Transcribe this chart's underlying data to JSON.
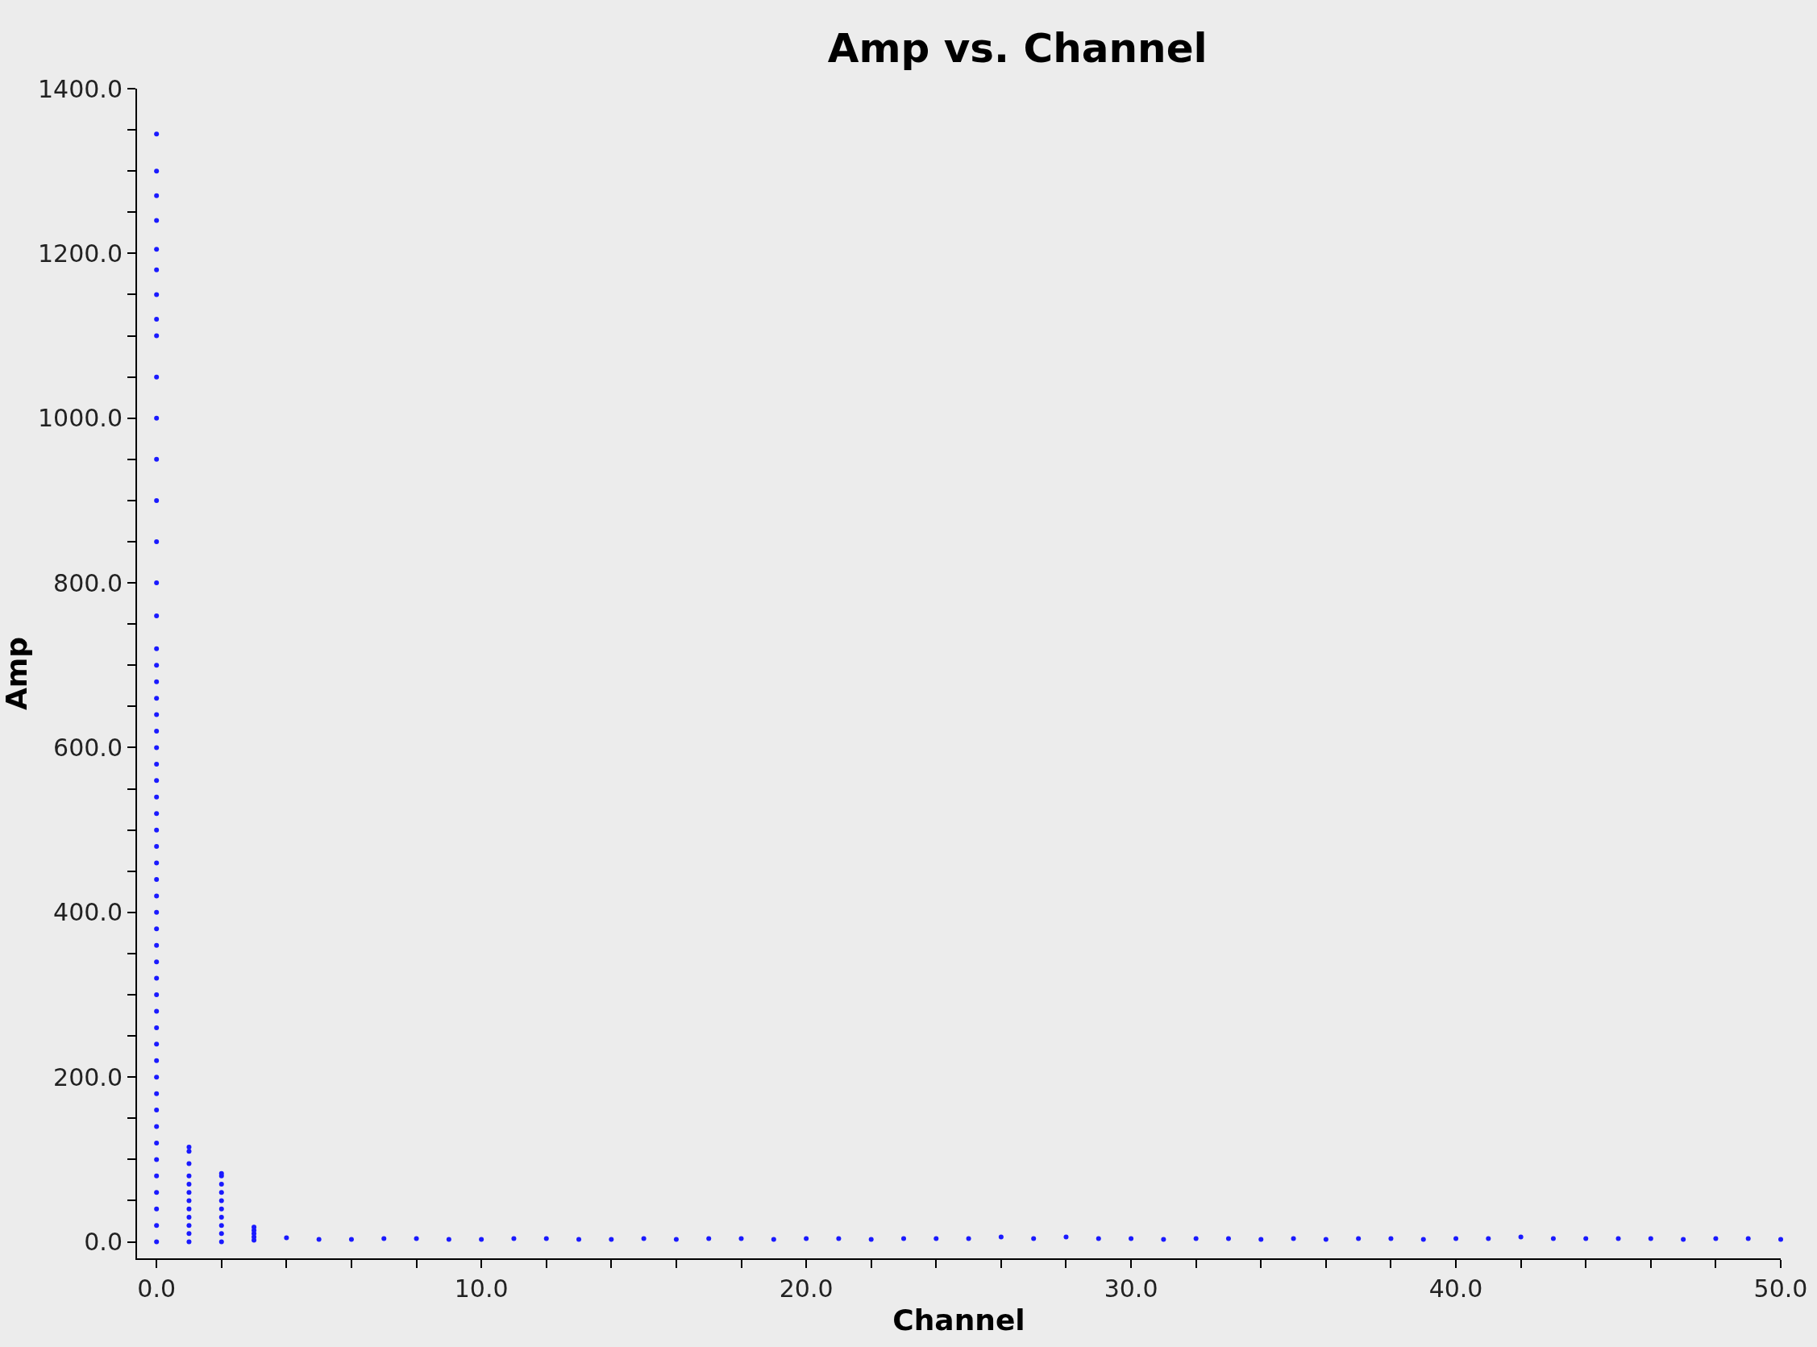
{
  "chart_data": {
    "type": "scatter",
    "title": "Amp vs. Channel",
    "xlabel": "Channel",
    "ylabel": "Amp",
    "x": [
      0,
      0,
      0,
      0,
      0,
      0,
      0,
      0,
      0,
      0,
      0,
      0,
      0,
      0,
      0,
      0,
      0,
      0,
      0,
      0,
      0,
      0,
      0,
      0,
      0,
      0,
      0,
      0,
      0,
      0,
      0,
      0,
      0,
      0,
      0,
      0,
      0,
      0,
      0,
      0,
      0,
      0,
      0,
      0,
      0,
      0,
      0,
      0,
      0,
      0,
      0,
      0,
      0,
      1,
      1,
      1,
      1,
      1,
      1,
      1,
      1,
      1,
      1,
      1,
      1,
      2,
      2,
      2,
      2,
      2,
      2,
      2,
      2,
      2,
      2,
      3,
      3,
      3,
      3,
      3,
      4,
      5,
      6,
      7,
      8,
      9,
      10,
      11,
      12,
      13,
      14,
      15,
      16,
      17,
      18,
      19,
      20,
      21,
      22,
      23,
      24,
      25,
      26,
      27,
      28,
      29,
      30,
      31,
      32,
      33,
      34,
      35,
      36,
      37,
      38,
      39,
      40,
      41,
      42,
      43,
      44,
      45,
      46,
      47,
      48,
      49,
      50
    ],
    "values": [
      0,
      20,
      40,
      60,
      80,
      100,
      120,
      140,
      160,
      180,
      200,
      220,
      240,
      260,
      280,
      300,
      320,
      340,
      360,
      380,
      400,
      420,
      440,
      460,
      480,
      500,
      520,
      540,
      560,
      580,
      600,
      620,
      640,
      660,
      680,
      700,
      720,
      760,
      800,
      850,
      900,
      950,
      1000,
      1050,
      1100,
      1120,
      1150,
      1180,
      1205,
      1240,
      1270,
      1300,
      1345,
      0,
      10,
      20,
      30,
      40,
      50,
      60,
      70,
      80,
      95,
      110,
      115,
      0,
      10,
      20,
      30,
      40,
      50,
      60,
      70,
      80,
      83,
      2,
      6,
      10,
      14,
      18,
      5,
      3,
      3,
      4,
      4,
      3,
      3,
      4,
      4,
      3,
      3,
      4,
      3,
      4,
      4,
      3,
      4,
      4,
      3,
      4,
      4,
      4,
      6,
      4,
      6,
      4,
      4,
      3,
      4,
      4,
      3,
      4,
      3,
      4,
      4,
      3,
      4,
      4,
      6,
      4,
      4,
      4,
      4,
      3,
      4,
      4,
      3
    ],
    "color": "#1a1aff",
    "marker": "circle",
    "grid": false,
    "xlim": [
      -0.6,
      50
    ],
    "ylim": [
      -20,
      1400
    ],
    "xticks": [
      {
        "value": 0,
        "label": "0.0"
      },
      {
        "value": 2,
        "label": null
      },
      {
        "value": 4,
        "label": null
      },
      {
        "value": 6,
        "label": null
      },
      {
        "value": 8,
        "label": null
      },
      {
        "value": 10,
        "label": "10.0"
      },
      {
        "value": 12,
        "label": null
      },
      {
        "value": 14,
        "label": null
      },
      {
        "value": 16,
        "label": null
      },
      {
        "value": 18,
        "label": null
      },
      {
        "value": 20,
        "label": "20.0"
      },
      {
        "value": 22,
        "label": null
      },
      {
        "value": 24,
        "label": null
      },
      {
        "value": 26,
        "label": null
      },
      {
        "value": 28,
        "label": null
      },
      {
        "value": 30,
        "label": "30.0"
      },
      {
        "value": 32,
        "label": null
      },
      {
        "value": 34,
        "label": null
      },
      {
        "value": 36,
        "label": null
      },
      {
        "value": 38,
        "label": null
      },
      {
        "value": 40,
        "label": "40.0"
      },
      {
        "value": 42,
        "label": null
      },
      {
        "value": 44,
        "label": null
      },
      {
        "value": 46,
        "label": null
      },
      {
        "value": 48,
        "label": null
      },
      {
        "value": 50,
        "label": "50.0"
      }
    ],
    "yticks": [
      {
        "value": 0,
        "label": "0.0"
      },
      {
        "value": 50,
        "label": null
      },
      {
        "value": 100,
        "label": null
      },
      {
        "value": 150,
        "label": null
      },
      {
        "value": 200,
        "label": "200.0"
      },
      {
        "value": 250,
        "label": null
      },
      {
        "value": 300,
        "label": null
      },
      {
        "value": 350,
        "label": null
      },
      {
        "value": 400,
        "label": "400.0"
      },
      {
        "value": 450,
        "label": null
      },
      {
        "value": 500,
        "label": null
      },
      {
        "value": 550,
        "label": null
      },
      {
        "value": 600,
        "label": "600.0"
      },
      {
        "value": 650,
        "label": null
      },
      {
        "value": 700,
        "label": null
      },
      {
        "value": 750,
        "label": null
      },
      {
        "value": 800,
        "label": "800.0"
      },
      {
        "value": 850,
        "label": null
      },
      {
        "value": 900,
        "label": null
      },
      {
        "value": 950,
        "label": null
      },
      {
        "value": 1000,
        "label": "1000.0"
      },
      {
        "value": 1050,
        "label": null
      },
      {
        "value": 1100,
        "label": null
      },
      {
        "value": 1150,
        "label": null
      },
      {
        "value": 1200,
        "label": "1200.0"
      },
      {
        "value": 1250,
        "label": null
      },
      {
        "value": 1300,
        "label": null
      },
      {
        "value": 1350,
        "label": null
      },
      {
        "value": 1400,
        "label": "1400.0"
      }
    ]
  }
}
